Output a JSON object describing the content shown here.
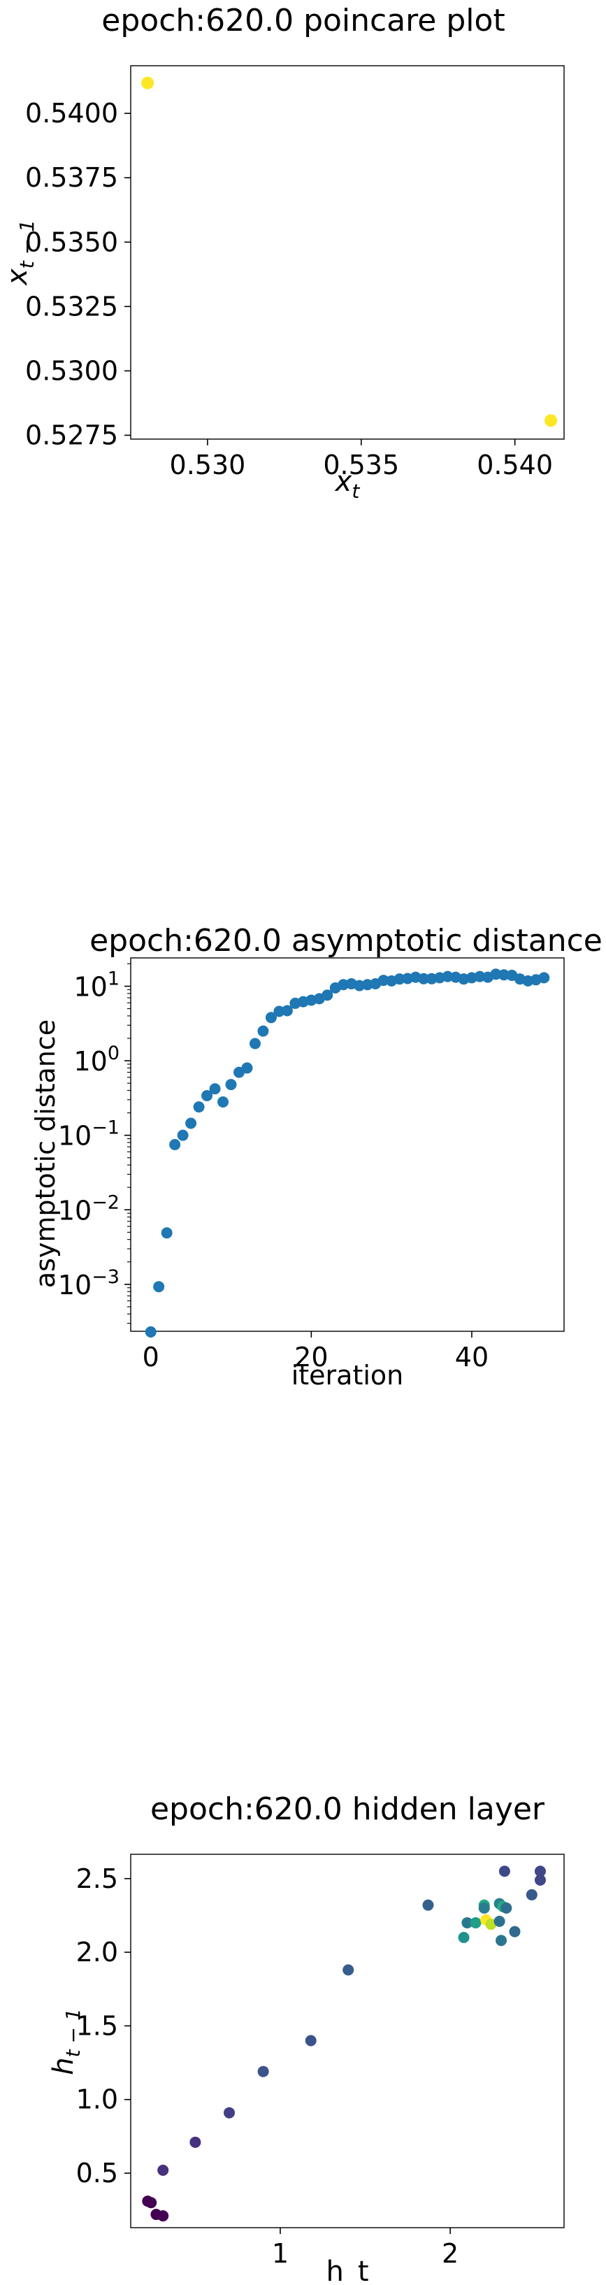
{
  "chart_data": [
    {
      "type": "scatter",
      "title": "epoch:620.0 poincare plot",
      "xlabel": "x_t",
      "ylabel": "x_{t-1}",
      "xlim": [
        0.5275,
        0.5416
      ],
      "ylim": [
        0.52735,
        0.54185
      ],
      "xticks": [
        0.53,
        0.535,
        0.54
      ],
      "xtick_labels": [
        "0.530",
        "0.535",
        "0.540"
      ],
      "yticks": [
        0.5275,
        0.53,
        0.5325,
        0.535,
        0.5375,
        0.54
      ],
      "ytick_labels": [
        "0.5275",
        "0.5300",
        "0.5325",
        "0.5350",
        "0.5375",
        "0.5400"
      ],
      "grid": false,
      "points": [
        {
          "x": 0.52805,
          "y": 0.54118,
          "color": "#fde725"
        },
        {
          "x": 0.54117,
          "y": 0.52807,
          "color": "#fde725"
        }
      ]
    },
    {
      "type": "scatter",
      "title": "epoch:620.0 asymptotic distance",
      "xlabel": "iteration",
      "ylabel": "asymptotic distance",
      "yscale": "log",
      "xlim": [
        -2.5,
        51.5
      ],
      "ylim_log10": [
        -3.63,
        1.38
      ],
      "xticks": [
        0,
        20,
        40
      ],
      "xtick_labels": [
        "0",
        "20",
        "40"
      ],
      "yticks_log10": [
        -3,
        -2,
        -1,
        0,
        1
      ],
      "ytick_bases": [
        "10",
        "10",
        "10",
        "10",
        "10"
      ],
      "ytick_exponents": [
        "−3",
        "−2",
        "−1",
        "0",
        "1"
      ],
      "grid": false,
      "marker_color": "#1f77b4",
      "x": [
        0,
        1,
        2,
        3,
        4,
        5,
        6,
        7,
        8,
        9,
        10,
        11,
        12,
        13,
        14,
        15,
        16,
        17,
        18,
        19,
        20,
        21,
        22,
        23,
        24,
        25,
        26,
        27,
        28,
        29,
        30,
        31,
        32,
        33,
        34,
        35,
        36,
        37,
        38,
        39,
        40,
        41,
        42,
        43,
        44,
        45,
        46,
        47,
        48,
        49
      ],
      "y": [
        0.00023,
        0.00093,
        0.0049,
        0.075,
        0.1,
        0.145,
        0.24,
        0.34,
        0.42,
        0.28,
        0.48,
        0.7,
        0.8,
        1.7,
        2.5,
        3.8,
        4.6,
        4.7,
        5.9,
        6.2,
        6.5,
        6.8,
        7.6,
        9.5,
        10.5,
        10.8,
        10.2,
        10.5,
        10.8,
        12.0,
        11.8,
        12.5,
        12.7,
        13.2,
        12.6,
        12.6,
        13.0,
        13.5,
        13.2,
        12.5,
        13.0,
        13.5,
        13.2,
        14.5,
        14.2,
        14.0,
        12.5,
        11.8,
        12.2,
        13.0
      ]
    },
    {
      "type": "scatter",
      "title": "epoch:620.0 hidden layer",
      "xlabel": "h_t",
      "ylabel": "h_{t-1}",
      "xlim": [
        0.12,
        2.67
      ],
      "ylim": [
        0.13,
        2.665
      ],
      "xticks": [
        1,
        2
      ],
      "xtick_labels": [
        "1",
        "2"
      ],
      "yticks": [
        0.5,
        1.0,
        1.5,
        2.0,
        2.5
      ],
      "ytick_labels": [
        "0.5",
        "1.0",
        "1.5",
        "2.0",
        "2.5"
      ],
      "grid": false,
      "points": [
        {
          "x": 0.22,
          "y": 0.31,
          "color": "#440154"
        },
        {
          "x": 0.24,
          "y": 0.3,
          "color": "#440154"
        },
        {
          "x": 0.27,
          "y": 0.22,
          "color": "#440154"
        },
        {
          "x": 0.31,
          "y": 0.21,
          "color": "#440154"
        },
        {
          "x": 0.31,
          "y": 0.52,
          "color": "#46327e"
        },
        {
          "x": 0.5,
          "y": 0.71,
          "color": "#46327e"
        },
        {
          "x": 0.7,
          "y": 0.91,
          "color": "#433e85"
        },
        {
          "x": 0.9,
          "y": 1.19,
          "color": "#3b528b"
        },
        {
          "x": 1.18,
          "y": 1.4,
          "color": "#3b528b"
        },
        {
          "x": 1.4,
          "y": 1.88,
          "color": "#365d8d"
        },
        {
          "x": 1.87,
          "y": 2.32,
          "color": "#355f8d"
        },
        {
          "x": 2.08,
          "y": 2.1,
          "color": "#21918c"
        },
        {
          "x": 2.1,
          "y": 2.2,
          "color": "#2a788e"
        },
        {
          "x": 2.15,
          "y": 2.2,
          "color": "#1f9e89"
        },
        {
          "x": 2.2,
          "y": 2.32,
          "color": "#22a884"
        },
        {
          "x": 2.2,
          "y": 2.3,
          "color": "#287d8e"
        },
        {
          "x": 2.21,
          "y": 2.22,
          "color": "#fde725"
        },
        {
          "x": 2.24,
          "y": 2.19,
          "color": "#bddf26"
        },
        {
          "x": 2.29,
          "y": 2.21,
          "color": "#2c728e"
        },
        {
          "x": 2.29,
          "y": 2.33,
          "color": "#26828e"
        },
        {
          "x": 2.3,
          "y": 2.08,
          "color": "#2a768e"
        },
        {
          "x": 2.31,
          "y": 2.31,
          "color": "#25ab82"
        },
        {
          "x": 2.32,
          "y": 2.55,
          "color": "#3e4989"
        },
        {
          "x": 2.33,
          "y": 2.3,
          "color": "#2e6e8e"
        },
        {
          "x": 2.38,
          "y": 2.14,
          "color": "#31688e"
        },
        {
          "x": 2.48,
          "y": 2.39,
          "color": "#38598c"
        },
        {
          "x": 2.53,
          "y": 2.49,
          "color": "#404688"
        },
        {
          "x": 2.53,
          "y": 2.55,
          "color": "#3f4788"
        }
      ]
    }
  ]
}
